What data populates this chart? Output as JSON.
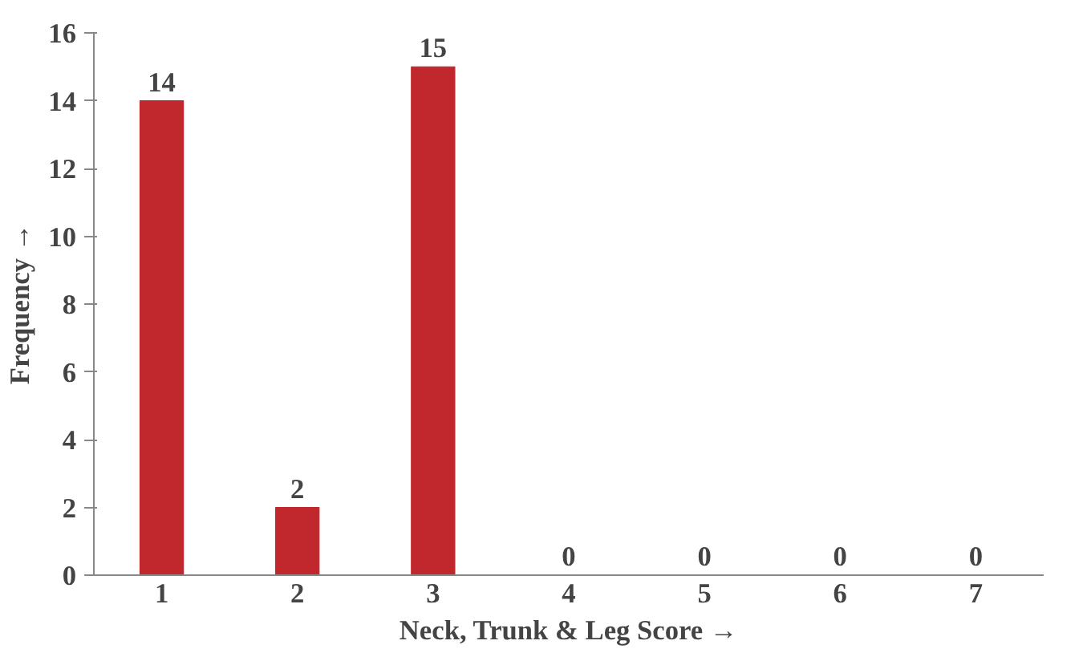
{
  "chart_data": {
    "type": "bar",
    "xlabel": "Neck, Trunk & Leg Score →",
    "ylabel": "Frequency →",
    "categories": [
      "1",
      "2",
      "3",
      "4",
      "5",
      "6",
      "7"
    ],
    "values": [
      14,
      2,
      15,
      0,
      0,
      0,
      0
    ],
    "color": "#c0282d",
    "ylim": [
      0,
      16
    ],
    "yticks": [
      0,
      2,
      4,
      6,
      8,
      10,
      12,
      14,
      16
    ],
    "grid": false,
    "data_labels": true
  }
}
